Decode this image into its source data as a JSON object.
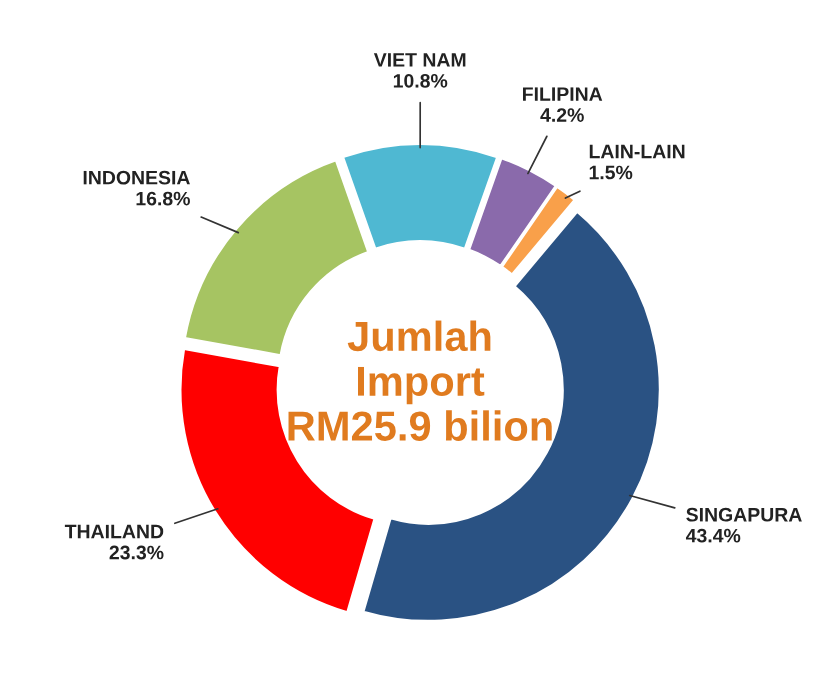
{
  "chart_data": {
    "type": "donut",
    "categories": [
      "SINGAPURA",
      "THAILAND",
      "INDONESIA",
      "VIET NAM",
      "FILIPINA",
      "LAIN-LAIN"
    ],
    "values": [
      43.4,
      23.3,
      16.8,
      10.8,
      4.2,
      1.5
    ],
    "colors": [
      "#2a5283",
      "#ff0000",
      "#a6c462",
      "#4fb8d2",
      "#8a6aab",
      "#f9a04a"
    ],
    "value_labels": [
      "43.4%",
      "23.3%",
      "16.8%",
      "10.8%",
      "4.2%",
      "1.5%"
    ],
    "annotations": [
      "Jumlah\nImport\nRM25.9 bilion"
    ],
    "legend": false
  }
}
